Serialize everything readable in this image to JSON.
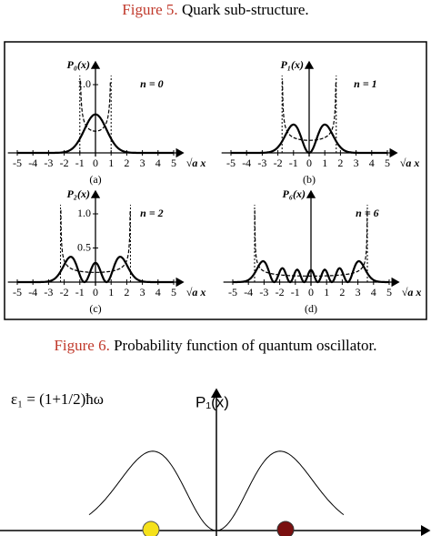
{
  "figure5": {
    "label": "Figure 5.",
    "caption": "Quark sub-structure.",
    "panels": [
      {
        "ylabel": "P₀(x)",
        "yticks": [
          "1.0"
        ],
        "state": "n = 0",
        "xticks": [
          "-5",
          "-4",
          "-3",
          "-2",
          "-1",
          "0",
          "1",
          "2",
          "3",
          "4",
          "5"
        ],
        "xlabel": "√a x",
        "tag": "(a)"
      },
      {
        "ylabel": "P₁(x)",
        "yticks": [],
        "state": "n = 1",
        "xticks": [
          "-5",
          "-4",
          "-3",
          "-2",
          "-1",
          "0",
          "1",
          "2",
          "3",
          "4",
          "5"
        ],
        "xlabel": "√a x",
        "tag": "(b)"
      },
      {
        "ylabel": "P₂(x)",
        "yticks": [
          "1.0",
          "0.5"
        ],
        "state": "n = 2",
        "xticks": [
          "-5",
          "-4",
          "-3",
          "-2",
          "-1",
          "0",
          "1",
          "2",
          "3",
          "4",
          "5"
        ],
        "xlabel": "√a x",
        "tag": "(c)"
      },
      {
        "ylabel": "P₆(x)",
        "yticks": [],
        "state": "n = 6",
        "xticks": [
          "-5",
          "-4",
          "-3",
          "-2",
          "-1",
          "0",
          "1",
          "2",
          "3",
          "4",
          "5"
        ],
        "xlabel": "√a x",
        "tag": "(d)"
      }
    ]
  },
  "figure6": {
    "label": "Figure 6.",
    "caption": "Probability function of quantum oscillator."
  },
  "illustration": {
    "energy": "ε₁ = (1+1/2)ħω",
    "ylabel": "P₁(x)"
  }
}
